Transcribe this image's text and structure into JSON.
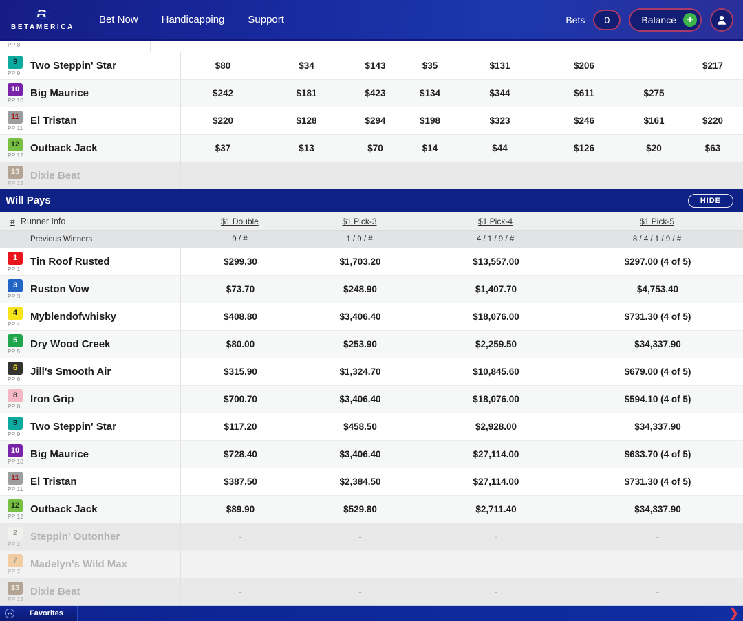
{
  "navbar": {
    "logo_text": "BETAMERICA",
    "menu": [
      "Bet Now",
      "Handicapping",
      "Support"
    ],
    "bets_label": "Bets",
    "bets_count": "0",
    "balance_label": "Balance",
    "plus_icon": "+"
  },
  "payouts_table": {
    "partial_row_pp": "PP 8",
    "rows": [
      {
        "num": "9",
        "pp": "PP 9",
        "name": "Two Steppin' Star",
        "badge_bg": "#0caa9e",
        "badge_fg": "#16262c",
        "scratched": false,
        "values": [
          "$80",
          "$34",
          "$143",
          "$35",
          "$131",
          "$206",
          "",
          "$217"
        ]
      },
      {
        "num": "10",
        "pp": "PP 10",
        "name": "Big Maurice",
        "badge_bg": "#7823a8",
        "badge_fg": "#ffffff",
        "scratched": false,
        "values": [
          "$242",
          "$181",
          "$423",
          "$134",
          "$344",
          "$611",
          "$275",
          ""
        ]
      },
      {
        "num": "11",
        "pp": "PP 11",
        "name": "El Tristan",
        "badge_bg": "#9c9ea0",
        "badge_fg": "#a41d23",
        "scratched": false,
        "values": [
          "$220",
          "$128",
          "$294",
          "$198",
          "$323",
          "$246",
          "$161",
          "$220"
        ]
      },
      {
        "num": "12",
        "pp": "PP 12",
        "name": "Outback Jack",
        "badge_bg": "#77c043",
        "badge_fg": "#1d2a12",
        "scratched": false,
        "values": [
          "$37",
          "$13",
          "$70",
          "$14",
          "$44",
          "$126",
          "$20",
          "$63"
        ]
      },
      {
        "num": "13",
        "pp": "PP 13",
        "name": "Dixie Beat",
        "badge_bg": "#b3a496",
        "badge_fg": "#efe9e1",
        "scratched": true,
        "values": [
          "",
          "",
          "",
          "",
          "",
          "",
          "",
          ""
        ]
      }
    ]
  },
  "will_pays": {
    "title": "Will Pays",
    "hide_button": "HIDE",
    "columns": {
      "num": "#",
      "runner": "Runner Info",
      "c1": "$1 Double",
      "c2": "$1 Pick-3",
      "c3": "$1 Pick-4",
      "c4": "$1 Pick-5"
    },
    "previous_winners": {
      "label": "Previous Winners",
      "values": [
        "9 / #",
        "1 / 9 / #",
        "4 / 1 / 9 / #",
        "8 / 4 / 1 / 9 / #"
      ]
    },
    "rows": [
      {
        "num": "1",
        "pp": "PP 1",
        "name": "Tin Roof Rusted",
        "badge_bg": "#e8151d",
        "badge_fg": "#ffffff",
        "scratched": false,
        "values": [
          "$299.30",
          "$1,703.20",
          "$13,557.00",
          "$297.00 (4 of 5)"
        ]
      },
      {
        "num": "3",
        "pp": "PP 3",
        "name": "Ruston Vow",
        "badge_bg": "#2265c4",
        "badge_fg": "#ffffff",
        "scratched": false,
        "values": [
          "$73.70",
          "$248.90",
          "$1,407.70",
          "$4,753.40"
        ]
      },
      {
        "num": "4",
        "pp": "PP 4",
        "name": "Myblendofwhisky",
        "badge_bg": "#f8e41c",
        "badge_fg": "#222222",
        "scratched": false,
        "values": [
          "$408.80",
          "$3,406.40",
          "$18,076.00",
          "$731.30 (4 of 5)"
        ]
      },
      {
        "num": "5",
        "pp": "PP 5",
        "name": "Dry Wood Creek",
        "badge_bg": "#1fa64d",
        "badge_fg": "#ffffff",
        "scratched": false,
        "values": [
          "$80.00",
          "$253.90",
          "$2,259.50",
          "$34,337.90"
        ]
      },
      {
        "num": "6",
        "pp": "PP 6",
        "name": "Jill's Smooth Air",
        "badge_bg": "#33332f",
        "badge_fg": "#efe11a",
        "scratched": false,
        "values": [
          "$315.90",
          "$1,324.70",
          "$10,845.60",
          "$679.00 (4 of 5)"
        ]
      },
      {
        "num": "8",
        "pp": "PP 8",
        "name": "Iron Grip",
        "badge_bg": "#f3b8c4",
        "badge_fg": "#3a3a3a",
        "scratched": false,
        "values": [
          "$700.70",
          "$3,406.40",
          "$18,076.00",
          "$594.10 (4 of 5)"
        ]
      },
      {
        "num": "9",
        "pp": "PP 9",
        "name": "Two Steppin' Star",
        "badge_bg": "#0caa9e",
        "badge_fg": "#16262c",
        "scratched": false,
        "values": [
          "$117.20",
          "$458.50",
          "$2,928.00",
          "$34,337.90"
        ]
      },
      {
        "num": "10",
        "pp": "PP 10",
        "name": "Big Maurice",
        "badge_bg": "#7823a8",
        "badge_fg": "#ffffff",
        "scratched": false,
        "values": [
          "$728.40",
          "$3,406.40",
          "$27,114.00",
          "$633.70 (4 of 5)"
        ]
      },
      {
        "num": "11",
        "pp": "PP 11",
        "name": "El Tristan",
        "badge_bg": "#9c9ea0",
        "badge_fg": "#a41d23",
        "scratched": false,
        "values": [
          "$387.50",
          "$2,384.50",
          "$27,114.00",
          "$731.30 (4 of 5)"
        ]
      },
      {
        "num": "12",
        "pp": "PP 12",
        "name": "Outback Jack",
        "badge_bg": "#77c043",
        "badge_fg": "#1d2a12",
        "scratched": false,
        "values": [
          "$89.90",
          "$529.80",
          "$2,711.40",
          "$34,337.90"
        ]
      },
      {
        "num": "2",
        "pp": "PP 2",
        "name": "Steppin' Outonher",
        "badge_bg": "#f0f0ee",
        "badge_fg": "#9a9a9a",
        "scratched": true,
        "values": [
          "-",
          "-",
          "-",
          "-"
        ]
      },
      {
        "num": "7",
        "pp": "PP 7",
        "name": "Madelyn's Wild Max",
        "badge_bg": "#f2cda4",
        "badge_fg": "#a79f94",
        "scratched": true,
        "values": [
          "-",
          "-",
          "-",
          "-"
        ]
      },
      {
        "num": "13",
        "pp": "PP 13",
        "name": "Dixie Beat",
        "badge_bg": "#b3a496",
        "badge_fg": "#efe9e1",
        "scratched": true,
        "values": [
          "-",
          "-",
          "-",
          "-"
        ]
      }
    ]
  },
  "bottom_bar": {
    "favorites_label": "Favorites",
    "right_chevron": "❯"
  }
}
